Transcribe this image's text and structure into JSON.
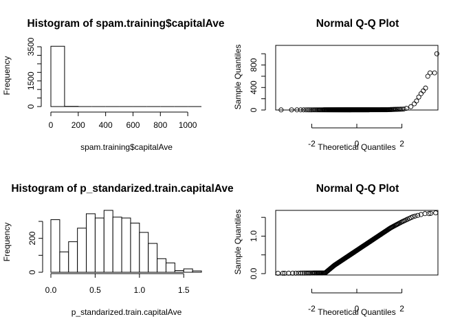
{
  "chart_data": [
    {
      "type": "bar",
      "title": "Histogram of spam.training$capitalAve",
      "xlabel": "spam.training$capitalAve",
      "ylabel": "Frequency",
      "bins": [
        [
          0,
          100,
          3450
        ],
        [
          100,
          200,
          12
        ],
        [
          200,
          300,
          4
        ],
        [
          300,
          400,
          2
        ],
        [
          400,
          500,
          1
        ],
        [
          500,
          600,
          1
        ],
        [
          600,
          700,
          2
        ],
        [
          700,
          800,
          0
        ],
        [
          800,
          900,
          1
        ],
        [
          900,
          1000,
          0
        ],
        [
          1000,
          1100,
          1
        ]
      ],
      "xlim": [
        0,
        1100
      ],
      "ylim": [
        0,
        3500
      ],
      "xticks": [
        "0",
        "200",
        "400",
        "600",
        "800",
        "1000"
      ],
      "yticks": [
        "0",
        "1500",
        "3500"
      ],
      "grid": false
    },
    {
      "type": "scatter",
      "title": "Normal Q-Q Plot",
      "xlabel": "Theoretical Quantiles",
      "ylabel": "Sample Quantiles",
      "xlim": [
        -3.6,
        3.6
      ],
      "ylim": [
        0,
        1100
      ],
      "xticks": [
        "-2",
        "0",
        "2"
      ],
      "yticks": [
        "0",
        "400",
        "800"
      ],
      "description": "sample quantiles near 0 up to theoretical quantile ~2, then rising steeply to ~1000 at 3.5",
      "upper_tail_points": [
        [
          2.2,
          30
        ],
        [
          2.4,
          60
        ],
        [
          2.55,
          110
        ],
        [
          2.65,
          160
        ],
        [
          2.75,
          230
        ],
        [
          2.85,
          290
        ],
        [
          2.95,
          340
        ],
        [
          3.05,
          390
        ],
        [
          3.15,
          600
        ],
        [
          3.25,
          660
        ],
        [
          3.45,
          660
        ],
        [
          3.55,
          1000
        ]
      ],
      "grid": false
    },
    {
      "type": "bar",
      "title": "Histogram of p_standarized.train.capitalAve",
      "xlabel": "p_standarized.train.capitalAve",
      "ylabel": "Frequency",
      "bins": [
        [
          0.0,
          0.1,
          310
        ],
        [
          0.1,
          0.2,
          120
        ],
        [
          0.2,
          0.3,
          180
        ],
        [
          0.3,
          0.4,
          260
        ],
        [
          0.4,
          0.5,
          345
        ],
        [
          0.5,
          0.6,
          320
        ],
        [
          0.6,
          0.7,
          365
        ],
        [
          0.7,
          0.8,
          325
        ],
        [
          0.8,
          0.9,
          320
        ],
        [
          0.9,
          1.0,
          290
        ],
        [
          1.0,
          1.1,
          235
        ],
        [
          1.1,
          1.2,
          170
        ],
        [
          1.2,
          1.3,
          80
        ],
        [
          1.3,
          1.4,
          55
        ],
        [
          1.4,
          1.5,
          10
        ],
        [
          1.5,
          1.6,
          20
        ],
        [
          1.6,
          1.7,
          8
        ]
      ],
      "xlim": [
        0,
        1.7
      ],
      "ylim": [
        0,
        300
      ],
      "xticks": [
        "0.0",
        "0.5",
        "1.0",
        "1.5"
      ],
      "yticks": [
        "0",
        "200"
      ],
      "grid": false
    },
    {
      "type": "scatter",
      "title": "Normal Q-Q Plot",
      "xlabel": "Theoretical Quantiles",
      "ylabel": "Sample Quantiles",
      "xlim": [
        -3.6,
        3.6
      ],
      "ylim": [
        0,
        1.65
      ],
      "xticks": [
        "-2",
        "0",
        "2"
      ],
      "yticks": [
        "0.0",
        "1.0"
      ],
      "description": "flat near 0 until theoretical quantile ~-1.4, then rising roughly linearly to ~1.6 at 3.5",
      "lower_flat_until": -1.4,
      "curve_points": [
        [
          -1.4,
          0.02
        ],
        [
          -1.2,
          0.12
        ],
        [
          -1.0,
          0.22
        ],
        [
          -0.6,
          0.38
        ],
        [
          0.0,
          0.62
        ],
        [
          0.5,
          0.82
        ],
        [
          1.0,
          1.02
        ],
        [
          1.5,
          1.22
        ],
        [
          2.0,
          1.38
        ],
        [
          2.5,
          1.52
        ],
        [
          3.0,
          1.6
        ],
        [
          3.2,
          1.6
        ],
        [
          3.5,
          1.62
        ]
      ],
      "grid": false
    }
  ]
}
